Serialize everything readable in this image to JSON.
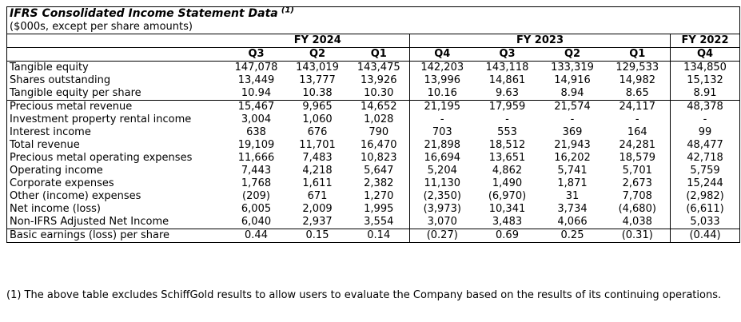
{
  "table": {
    "title": "IFRS Consolidated Income Statement Data",
    "title_superscript": "(1)",
    "subtitle": "($000s, except per share amounts)",
    "column_groups": [
      {
        "label": "FY 2024",
        "quarters": [
          "Q3",
          "Q2",
          "Q1"
        ]
      },
      {
        "label": "FY 2023",
        "quarters": [
          "Q4",
          "Q3",
          "Q2",
          "Q1"
        ]
      },
      {
        "label": "FY 2022",
        "quarters": [
          "Q4"
        ]
      }
    ],
    "sections": [
      {
        "rows": [
          {
            "label": "Tangible equity",
            "values": [
              "147,078",
              "143,019",
              "143,475",
              "142,203",
              "143,118",
              "133,319",
              "129,533",
              "134,850"
            ]
          },
          {
            "label": "Shares outstanding",
            "values": [
              "13,449",
              "13,777",
              "13,926",
              "13,996",
              "14,861",
              "14,916",
              "14,982",
              "15,132"
            ]
          },
          {
            "label": "Tangible equity per share",
            "values": [
              "10.94",
              "10.38",
              "10.30",
              "10.16",
              "9.63",
              "8.94",
              "8.65",
              "8.91"
            ]
          }
        ]
      },
      {
        "rows": [
          {
            "label": "Precious metal revenue",
            "values": [
              "15,467",
              "9,965",
              "14,652",
              "21,195",
              "17,959",
              "21,574",
              "24,117",
              "48,378"
            ]
          },
          {
            "label": "Investment property rental income",
            "values": [
              "3,004",
              "1,060",
              "1,028",
              "-",
              "-",
              "-",
              "-",
              "-"
            ]
          },
          {
            "label": "Interest income",
            "values": [
              "638",
              "676",
              "790",
              "703",
              "553",
              "369",
              "164",
              "99"
            ]
          },
          {
            "label": "Total revenue",
            "values": [
              "19,109",
              "11,701",
              "16,470",
              "21,898",
              "18,512",
              "21,943",
              "24,281",
              "48,477"
            ]
          },
          {
            "label": "Precious metal operating expenses",
            "values": [
              "11,666",
              "7,483",
              "10,823",
              "16,694",
              "13,651",
              "16,202",
              "18,579",
              "42,718"
            ]
          },
          {
            "label": "Operating income",
            "values": [
              "7,443",
              "4,218",
              "5,647",
              "5,204",
              "4,862",
              "5,741",
              "5,701",
              "5,759"
            ]
          },
          {
            "label": "Corporate expenses",
            "values": [
              "1,768",
              "1,611",
              "2,382",
              "11,130",
              "1,490",
              "1,871",
              "2,673",
              "15,244"
            ]
          },
          {
            "label": "Other (income) expenses",
            "values": [
              "(209)",
              "671",
              "1,270",
              "(2,350)",
              "(6,970)",
              "31",
              "7,708",
              "(2,982)"
            ]
          },
          {
            "label": "Net income (loss)",
            "values": [
              "6,005",
              "2,009",
              "1,995",
              "(3,973)",
              "10,341",
              "3,734",
              "(4,680)",
              "(6,611)"
            ]
          },
          {
            "label": "Non-IFRS Adjusted Net Income",
            "values": [
              "6,040",
              "2,937",
              "3,554",
              "3,070",
              "3,483",
              "4,066",
              "4,038",
              "5,033"
            ]
          }
        ]
      },
      {
        "rows": [
          {
            "label": "Basic earnings (loss) per share",
            "values": [
              "0.44",
              "0.15",
              "0.14",
              "(0.27)",
              "0.69",
              "0.25",
              "(0.31)",
              "(0.44)"
            ]
          }
        ]
      }
    ]
  },
  "footnote": "(1) The above table excludes SchiffGold results to allow users to evaluate the Company based on the results of its continuing operations."
}
